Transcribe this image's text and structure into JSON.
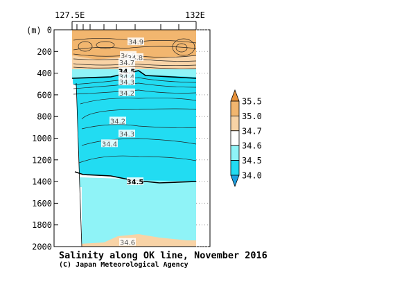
{
  "chart_data": {
    "type": "contour-section",
    "title": "Salinity along OK line, November 2016",
    "credit": "(C) Japan Meteorological Agency",
    "x_start_label": "127.5E",
    "x_end_label": "132E",
    "y_unit_label": "(m)",
    "y_ticks": [
      0,
      200,
      400,
      600,
      800,
      1000,
      1200,
      1400,
      1600,
      1800,
      2000
    ],
    "y_range": [
      0,
      2000
    ],
    "colorbar": {
      "levels": [
        "35.5",
        "35.0",
        "34.7",
        "34.6",
        "34.5",
        "34.0"
      ],
      "colors": [
        "#e8923a",
        "#f2b66f",
        "#f8d3a6",
        "#ffffff",
        "#8ff3f7",
        "#22dcf2",
        "#1c9fe0"
      ]
    },
    "contour_labels": [
      {
        "text": "34.9",
        "depth": 110
      },
      {
        "text": "34.9",
        "depth": 235
      },
      {
        "text": "34.8",
        "depth": 255
      },
      {
        "text": "34.7",
        "depth": 300
      },
      {
        "text": "34.5",
        "depth": 380
      },
      {
        "text": "34.4",
        "depth": 430
      },
      {
        "text": "34.3",
        "depth": 480
      },
      {
        "text": "34.2",
        "depth": 580
      },
      {
        "text": "34.2",
        "depth": 840
      },
      {
        "text": "34.3",
        "depth": 960
      },
      {
        "text": "34.4",
        "depth": 1050
      },
      {
        "text": "34.5",
        "depth": 1400
      },
      {
        "text": "34.6",
        "depth": 1960
      }
    ]
  }
}
